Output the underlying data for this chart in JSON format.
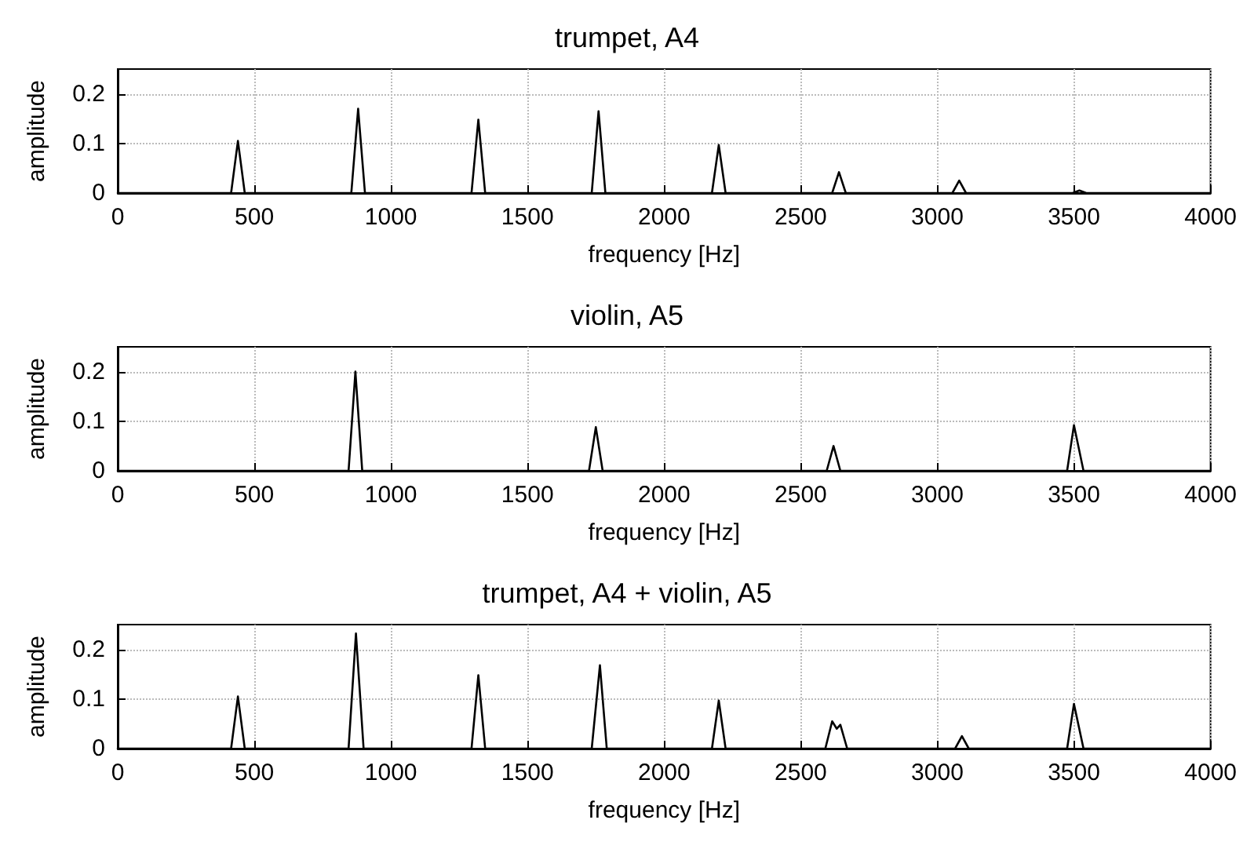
{
  "chart_data": [
    {
      "type": "line",
      "title": "trumpet, A4",
      "xlabel": "frequency [Hz]",
      "ylabel": "amplitude",
      "x": [
        0,
        415,
        440,
        465,
        855,
        880,
        905,
        1295,
        1320,
        1345,
        1735,
        1760,
        1785,
        2175,
        2200,
        2225,
        2615,
        2640,
        2665,
        3055,
        3080,
        3105,
        3495,
        3520,
        3545,
        4000
      ],
      "series": [
        {
          "color": "#000000",
          "values": [
            0,
            0,
            0.105,
            0,
            0,
            0.17,
            0,
            0,
            0.148,
            0,
            0,
            0.165,
            0,
            0,
            0.097,
            0,
            0,
            0.042,
            0,
            0,
            0.025,
            0,
            0,
            0.005,
            0,
            0
          ]
        }
      ],
      "xlim": [
        0,
        4000
      ],
      "xticks": [
        0,
        500,
        1000,
        1500,
        2000,
        2500,
        3000,
        3500,
        4000
      ],
      "ylim": [
        0,
        0.25
      ],
      "yticks": [
        0,
        0.1,
        0.2
      ],
      "grid": true,
      "marker": "none",
      "line_style": "solid"
    },
    {
      "type": "line",
      "title": "violin, A5",
      "xlabel": "frequency [Hz]",
      "ylabel": "amplitude",
      "x": [
        0,
        845,
        870,
        895,
        1725,
        1750,
        1775,
        2595,
        2620,
        2645,
        3475,
        3500,
        3535,
        4000
      ],
      "series": [
        {
          "color": "#000000",
          "values": [
            0,
            0,
            0.2,
            0,
            0,
            0.088,
            0,
            0,
            0.05,
            0,
            0,
            0.092,
            0,
            0
          ]
        }
      ],
      "xlim": [
        0,
        4000
      ],
      "xticks": [
        0,
        500,
        1000,
        1500,
        2000,
        2500,
        3000,
        3500,
        4000
      ],
      "ylim": [
        0,
        0.25
      ],
      "yticks": [
        0,
        0.1,
        0.2
      ],
      "grid": true,
      "marker": "none",
      "line_style": "solid"
    },
    {
      "type": "line",
      "title": "trumpet, A4 + violin, A5",
      "xlabel": "frequency [Hz]",
      "ylabel": "amplitude",
      "x": [
        0,
        415,
        440,
        465,
        845,
        872,
        900,
        1295,
        1320,
        1345,
        1735,
        1765,
        1790,
        2175,
        2200,
        2225,
        2590,
        2615,
        2632,
        2645,
        2670,
        3065,
        3090,
        3115,
        3475,
        3500,
        3535,
        4000
      ],
      "series": [
        {
          "color": "#000000",
          "values": [
            0,
            0,
            0.105,
            0,
            0,
            0.232,
            0,
            0,
            0.148,
            0,
            0,
            0.168,
            0,
            0,
            0.097,
            0,
            0,
            0.055,
            0.04,
            0.048,
            0,
            0,
            0.025,
            0,
            0,
            0.09,
            0,
            0
          ]
        }
      ],
      "xlim": [
        0,
        4000
      ],
      "xticks": [
        0,
        500,
        1000,
        1500,
        2000,
        2500,
        3000,
        3500,
        4000
      ],
      "ylim": [
        0,
        0.25
      ],
      "yticks": [
        0,
        0.1,
        0.2
      ],
      "grid": true,
      "marker": "none",
      "line_style": "solid"
    }
  ]
}
